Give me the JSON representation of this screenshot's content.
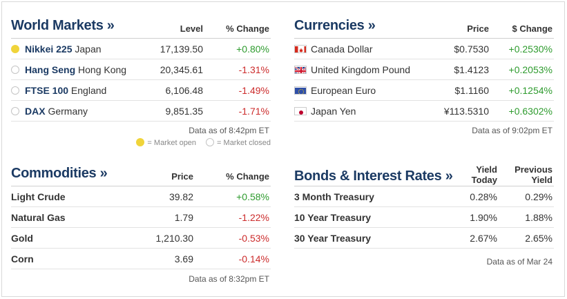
{
  "world_markets": {
    "title": "World Markets »",
    "col_level": "Level",
    "col_change": "% Change",
    "rows": [
      {
        "name": "Nikkei 225",
        "region": "Japan",
        "level": "17,139.50",
        "change": "+0.80%",
        "status": "open"
      },
      {
        "name": "Hang Seng",
        "region": "Hong Kong",
        "level": "20,345.61",
        "change": "-1.31%",
        "status": "closed"
      },
      {
        "name": "FTSE 100",
        "region": "England",
        "level": "6,106.48",
        "change": "-1.49%",
        "status": "closed"
      },
      {
        "name": "DAX",
        "region": "Germany",
        "level": "9,851.35",
        "change": "-1.71%",
        "status": "closed"
      }
    ],
    "note": "Data as of 8:42pm ET",
    "legend_open": "= Market open",
    "legend_closed": "= Market closed"
  },
  "currencies": {
    "title": "Currencies »",
    "col_price": "Price",
    "col_change": "$ Change",
    "rows": [
      {
        "flag": "canada-flag-icon",
        "name": "Canada Dollar",
        "price": "$0.7530",
        "change": "+0.2530%"
      },
      {
        "flag": "uk-flag-icon",
        "name": "United Kingdom Pound",
        "price": "$1.4123",
        "change": "+0.2053%"
      },
      {
        "flag": "eu-flag-icon",
        "name": "European Euro",
        "price": "$1.1160",
        "change": "+0.1254%"
      },
      {
        "flag": "japan-flag-icon",
        "name": "Japan Yen",
        "price": "¥113.5310",
        "change": "+0.6302%"
      }
    ],
    "note": "Data as of 9:02pm ET"
  },
  "commodities": {
    "title": "Commodities »",
    "col_price": "Price",
    "col_change": "% Change",
    "rows": [
      {
        "name": "Light Crude",
        "price": "39.82",
        "change": "+0.58%"
      },
      {
        "name": "Natural Gas",
        "price": "1.79",
        "change": "-1.22%"
      },
      {
        "name": "Gold",
        "price": "1,210.30",
        "change": "-0.53%"
      },
      {
        "name": "Corn",
        "price": "3.69",
        "change": "-0.14%"
      }
    ],
    "note": "Data as of 8:32pm ET"
  },
  "bonds": {
    "title": "Bonds & Interest Rates »",
    "col_yield_l1": "Yield",
    "col_yield_l2": "Today",
    "col_prev_l1": "Previous",
    "col_prev_l2": "Yield",
    "rows": [
      {
        "name": "3 Month Treasury",
        "yield": "0.28%",
        "previous": "0.29%"
      },
      {
        "name": "10 Year Treasury",
        "yield": "1.90%",
        "previous": "1.88%"
      },
      {
        "name": "30 Year Treasury",
        "yield": "2.67%",
        "previous": "2.65%"
      }
    ],
    "note": "Data as of Mar 24"
  },
  "colors": {
    "positive": "#2e9b2e",
    "negative": "#cc2b2b",
    "title": "#1b3a63",
    "market_open": "#f0d43a"
  }
}
